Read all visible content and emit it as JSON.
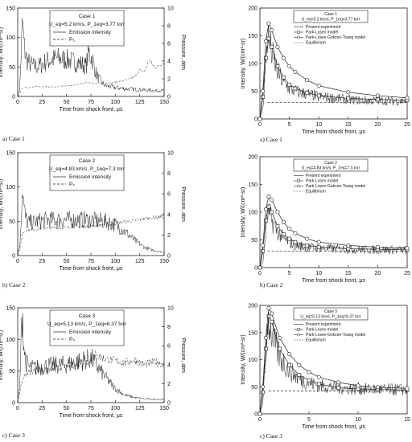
{
  "chart_data": [
    {
      "id": "left-case-1",
      "type": "line",
      "title": "Case 1",
      "conditions": "U_eq=5.2 km/s, P_1eq=3.77 torr",
      "sublabel": "a) Case 1",
      "xlabel": "Time from shock front, μs",
      "ylabel": "Intensity, W/(cm²-sr)",
      "ylabel2": "Pressure, atm",
      "xlim": [
        0,
        150
      ],
      "ylim": [
        0,
        150
      ],
      "y2lim": [
        0,
        10
      ],
      "xticks": [
        0,
        25,
        50,
        75,
        100,
        125,
        150
      ],
      "yticks": [
        0,
        50,
        100,
        150
      ],
      "y2ticks": [
        0,
        2,
        4,
        6,
        8,
        10
      ],
      "legend": [
        "Emission intensity",
        "P₅"
      ],
      "series": [
        {
          "name": "Emission intensity",
          "axis": "left",
          "style": "solid",
          "noise": 0.3,
          "x": [
            0,
            2,
            4,
            5,
            6,
            8,
            10,
            13,
            16,
            20,
            25,
            30,
            40,
            50,
            60,
            70,
            73,
            77,
            80,
            85,
            90,
            100,
            110,
            120,
            130,
            140,
            150
          ],
          "y": [
            3,
            10,
            90,
            130,
            95,
            70,
            60,
            55,
            52,
            50,
            55,
            60,
            65,
            62,
            58,
            52,
            75,
            60,
            40,
            25,
            18,
            15,
            13,
            12,
            11,
            10,
            10
          ]
        },
        {
          "name": "P₅",
          "axis": "right",
          "style": "dashed",
          "noise": 0.05,
          "x": [
            0,
            2,
            4,
            6,
            10,
            20,
            30,
            40,
            50,
            60,
            70,
            80,
            90,
            100,
            110,
            120,
            125,
            130,
            135,
            140,
            150
          ],
          "y": [
            0,
            0.3,
            0.8,
            1.0,
            1.0,
            1.1,
            1.1,
            1.1,
            1.2,
            1.3,
            1.6,
            1.5,
            1.5,
            1.6,
            1.8,
            2.2,
            3.0,
            2.8,
            4.2,
            3.2,
            3.8
          ]
        }
      ]
    },
    {
      "id": "left-case-2",
      "type": "line",
      "title": "Case 2",
      "conditions": "U_eq=4.83 km/s, P_1eq=7.3 torr",
      "sublabel": "b) Case 2",
      "xlabel": "Time from shock front, μs",
      "ylabel": "Intensity, W/(cm²-sr)",
      "ylabel2": "Pressure, atm",
      "xlim": [
        0,
        150
      ],
      "ylim": [
        0,
        150
      ],
      "y2lim": [
        0,
        10
      ],
      "xticks": [
        0,
        25,
        50,
        75,
        100,
        125,
        150
      ],
      "yticks": [
        0,
        50,
        100,
        150
      ],
      "y2ticks": [
        0,
        2,
        4,
        6,
        8,
        10
      ],
      "legend": [
        "Emission intensity",
        "P₅"
      ],
      "series": [
        {
          "name": "Emission intensity",
          "axis": "left",
          "style": "solid",
          "noise": 0.25,
          "x": [
            0,
            2,
            4,
            5,
            6,
            8,
            10,
            15,
            20,
            30,
            50,
            70,
            90,
            100,
            110,
            120,
            130,
            140,
            150
          ],
          "y": [
            3,
            10,
            70,
            105,
            75,
            55,
            48,
            48,
            50,
            52,
            52,
            52,
            50,
            45,
            35,
            22,
            12,
            7,
            5
          ]
        },
        {
          "name": "P₅",
          "axis": "right",
          "style": "dashed",
          "noise": 0.05,
          "x": [
            0,
            3,
            5,
            10,
            20,
            40,
            60,
            80,
            100,
            110,
            120,
            130,
            140,
            150
          ],
          "y": [
            0,
            1.0,
            2.2,
            2.5,
            2.6,
            2.7,
            2.8,
            2.9,
            3.1,
            3.3,
            3.4,
            3.6,
            3.7,
            3.8
          ]
        }
      ]
    },
    {
      "id": "left-case-3",
      "type": "line",
      "title": "Case 3",
      "conditions": "U_eq=5.13 km/s, P_1eq=6.37 torr",
      "sublabel": "c) Case 3",
      "xlabel": "Time from shock front, μs",
      "ylabel": "Intensity, W/(cm²-sr)",
      "ylabel2": "Pressure, atm",
      "xlim": [
        0,
        150
      ],
      "ylim": [
        0,
        150
      ],
      "y2lim": [
        0,
        10
      ],
      "xticks": [
        0,
        25,
        50,
        75,
        100,
        125,
        150
      ],
      "yticks": [
        0,
        50,
        100,
        150
      ],
      "y2ticks": [
        0,
        2,
        4,
        6,
        8,
        10
      ],
      "legend": [
        "Emission intensity",
        "P₅"
      ],
      "series": [
        {
          "name": "Emission intensity",
          "axis": "left",
          "style": "solid",
          "noise": 0.25,
          "x": [
            0,
            2,
            4,
            5,
            6,
            8,
            12,
            20,
            30,
            50,
            70,
            75,
            80,
            90,
            100,
            110,
            120,
            130,
            140,
            150
          ],
          "y": [
            5,
            20,
            120,
            150,
            95,
            65,
            55,
            55,
            58,
            60,
            68,
            70,
            60,
            40,
            22,
            12,
            8,
            6,
            5,
            5
          ]
        },
        {
          "name": "P₅",
          "axis": "right",
          "style": "dashed",
          "noise": 0.1,
          "x": [
            0,
            3,
            5,
            8,
            15,
            30,
            50,
            70,
            80,
            90,
            100,
            110,
            120,
            130,
            140,
            150
          ],
          "y": [
            0,
            1.5,
            2.5,
            3.0,
            3.3,
            3.5,
            3.8,
            4.2,
            5.0,
            4.6,
            4.4,
            4.2,
            4.5,
            4.0,
            4.3,
            4.1
          ]
        }
      ]
    },
    {
      "id": "right-case-1",
      "type": "line",
      "title": "Case 1",
      "conditions": "U_eq=5.2 km/s, P_1eq=3.77 torr",
      "sublabel": "a)  Case 1",
      "xlabel": "Time from shock front, μs",
      "ylabel": "Intensity, W/(cm²-sr)",
      "xlim": [
        0,
        25
      ],
      "ylim": [
        0,
        200
      ],
      "xticks": [
        0,
        5,
        10,
        15,
        20,
        25
      ],
      "yticks": [
        0,
        50,
        100,
        150,
        200
      ],
      "legend": [
        "Present experiment",
        "Park-Losev model",
        "Park-Losev-Gokcen-Tsang model",
        "Equilibrium"
      ],
      "series": [
        {
          "name": "Present experiment",
          "style": "solid",
          "noise": 0.25,
          "x": [
            0,
            0.5,
            1.0,
            1.3,
            1.6,
            2.0,
            3,
            4,
            5,
            6,
            8,
            10,
            12,
            15,
            18,
            20,
            25
          ],
          "y": [
            0,
            20,
            100,
            150,
            140,
            120,
            85,
            65,
            55,
            50,
            45,
            40,
            38,
            35,
            33,
            33,
            32
          ]
        },
        {
          "name": "Park-Losev model",
          "style": "solid",
          "marker": "square",
          "x": [
            0,
            0.5,
            1.0,
            1.5,
            2.0,
            3,
            4,
            5,
            6,
            8,
            10,
            15,
            20,
            25
          ],
          "y": [
            0,
            40,
            110,
            145,
            130,
            95,
            75,
            62,
            55,
            47,
            42,
            37,
            35,
            34
          ]
        },
        {
          "name": "Park-Losev-Gokcen-Tsang model",
          "style": "solid",
          "marker": "circle",
          "x": [
            0,
            0.5,
            1.0,
            1.5,
            2.0,
            3,
            4,
            5,
            6,
            8,
            10,
            15,
            20,
            25
          ],
          "y": [
            0,
            50,
            140,
            172,
            160,
            130,
            110,
            95,
            85,
            70,
            60,
            48,
            42,
            38
          ]
        },
        {
          "name": "Equilibrium",
          "style": "dashed",
          "x": [
            1.3,
            25
          ],
          "y": [
            30,
            30
          ]
        }
      ]
    },
    {
      "id": "right-case-2",
      "type": "line",
      "title": "Case 2",
      "conditions": "U_eq=4.83 km/s, P_1eq=7.3 torr",
      "sublabel": "b)  Case 2",
      "xlabel": "Time from shock front, μs",
      "ylabel": "Intensity, W/(cm²-sr)",
      "xlim": [
        0,
        25
      ],
      "ylim": [
        0,
        200
      ],
      "xticks": [
        0,
        5,
        10,
        15,
        20,
        25
      ],
      "yticks": [
        0,
        50,
        100,
        150,
        200
      ],
      "legend": [
        "Present experiment",
        "Park-Losev model",
        "Park-Losev-Gokcen-Tsang model",
        "Equilibrium"
      ],
      "series": [
        {
          "name": "Present experiment",
          "style": "solid",
          "noise": 0.25,
          "x": [
            0,
            0.5,
            1.0,
            1.3,
            1.6,
            2.0,
            3,
            4,
            5,
            6,
            8,
            10,
            12,
            15,
            20,
            25
          ],
          "y": [
            0,
            10,
            60,
            100,
            95,
            85,
            65,
            52,
            45,
            40,
            37,
            35,
            34,
            33,
            32,
            32
          ]
        },
        {
          "name": "Park-Losev model",
          "style": "solid",
          "marker": "square",
          "x": [
            0,
            0.5,
            1.0,
            1.5,
            2.0,
            3,
            4,
            5,
            6,
            8,
            10,
            15,
            20,
            25
          ],
          "y": [
            0,
            30,
            85,
            110,
            100,
            75,
            60,
            52,
            46,
            40,
            37,
            34,
            33,
            32
          ]
        },
        {
          "name": "Park-Losev-Gokcen-Tsang model",
          "style": "solid",
          "marker": "circle",
          "x": [
            0,
            0.5,
            1.0,
            1.5,
            2.0,
            3,
            4,
            5,
            6,
            8,
            10,
            15,
            20,
            25
          ],
          "y": [
            0,
            40,
            105,
            128,
            122,
            100,
            82,
            70,
            62,
            52,
            46,
            40,
            37,
            35
          ]
        },
        {
          "name": "Equilibrium",
          "style": "dashed",
          "x": [
            1.3,
            25
          ],
          "y": [
            30,
            30
          ]
        }
      ]
    },
    {
      "id": "right-case-3",
      "type": "line",
      "title": "Case 3",
      "conditions": "U_eq=5.13 km/s, P_1eq=6.37 torr",
      "sublabel": "c)  Case 3",
      "xlabel": "Time from shock front, μs",
      "ylabel": "Intensity, W/(cm²-sr)",
      "xlim": [
        0,
        15
      ],
      "ylim": [
        0,
        200
      ],
      "xticks": [
        0,
        5,
        10,
        15
      ],
      "yticks": [
        0,
        50,
        100,
        150,
        200
      ],
      "legend": [
        "Present experiment",
        "Park-Losev model",
        "Park-Losev-Gokcen-Tsang model",
        "Equilibrium"
      ],
      "series": [
        {
          "name": "Present experiment",
          "style": "solid",
          "noise": 0.25,
          "x": [
            0,
            0.3,
            0.6,
            0.8,
            1.0,
            1.3,
            2,
            3,
            4,
            5,
            6,
            8,
            10,
            12,
            15
          ],
          "y": [
            0,
            20,
            100,
            175,
            165,
            140,
            105,
            80,
            65,
            57,
            52,
            48,
            46,
            45,
            45
          ]
        },
        {
          "name": "Park-Losev model",
          "style": "solid",
          "marker": "square",
          "x": [
            0,
            0.3,
            0.6,
            0.9,
            1.2,
            2,
            3,
            4,
            5,
            6,
            8,
            10,
            12,
            15
          ],
          "y": [
            0,
            40,
            120,
            180,
            170,
            120,
            90,
            72,
            62,
            55,
            48,
            46,
            45,
            44
          ]
        },
        {
          "name": "Park-Losev-Gokcen-Tsang model",
          "style": "solid",
          "marker": "circle",
          "x": [
            0,
            0.3,
            0.6,
            0.9,
            1.2,
            2,
            3,
            4,
            5,
            6,
            8,
            10,
            12,
            15
          ],
          "y": [
            0,
            50,
            140,
            195,
            185,
            140,
            110,
            90,
            77,
            68,
            58,
            52,
            49,
            47
          ]
        },
        {
          "name": "Equilibrium",
          "style": "dashed",
          "x": [
            0.9,
            15
          ],
          "y": [
            42,
            42
          ]
        }
      ]
    }
  ]
}
